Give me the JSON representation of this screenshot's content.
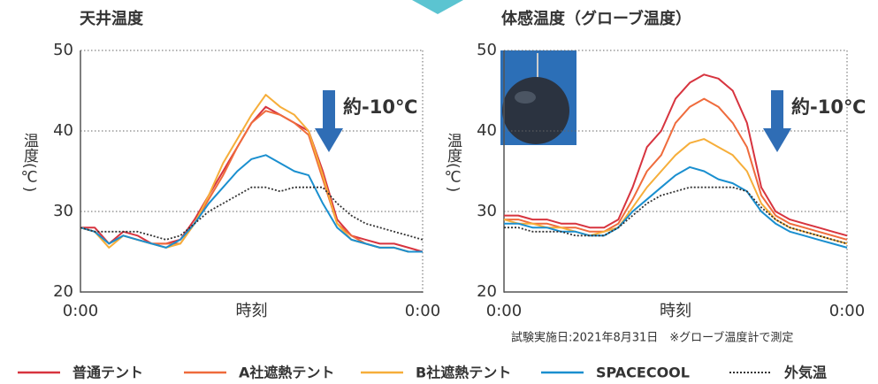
{
  "chart_data": [
    {
      "type": "line",
      "title": "天井温度",
      "x_label": "時刻",
      "y_label": "温度(℃)",
      "annotation": "約-10℃",
      "x": [
        0,
        1,
        2,
        3,
        4,
        5,
        6,
        7,
        8,
        9,
        10,
        11,
        12,
        13,
        14,
        15,
        16,
        17,
        18,
        19,
        20,
        21,
        22,
        23,
        24
      ],
      "xlim": [
        0,
        24
      ],
      "xticks": [
        {
          "value": 0,
          "label": "0:00"
        },
        {
          "value": 24,
          "label": "0:00"
        }
      ],
      "ylim": [
        20,
        50
      ],
      "yticks": [
        20,
        30,
        40,
        50
      ],
      "grid": true,
      "series": [
        {
          "name": "普通テント",
          "color": "#d7343f",
          "dash": "solid",
          "values": [
            28,
            28,
            26,
            27.5,
            27,
            26,
            26,
            26.5,
            29,
            32,
            35,
            38,
            41,
            43,
            42,
            41,
            40,
            35,
            29,
            27,
            26.5,
            26,
            26,
            25.5,
            25
          ]
        },
        {
          "name": "A社遮熱テント",
          "color": "#ef6b3c",
          "dash": "solid",
          "values": [
            28,
            27.5,
            26,
            27,
            26.5,
            26,
            26,
            26,
            28.5,
            31.5,
            34.5,
            38,
            41,
            42.5,
            42,
            41,
            39.5,
            34,
            28.5,
            27,
            26,
            25.5,
            25.5,
            25,
            25
          ]
        },
        {
          "name": "B社遮熱テント",
          "color": "#f6ae3a",
          "dash": "solid",
          "values": [
            28,
            27.5,
            25.5,
            27,
            26.5,
            26,
            25.5,
            26,
            28.5,
            32,
            36,
            39,
            42,
            44.5,
            43,
            42,
            40,
            34.5,
            28.5,
            26.5,
            26,
            25.5,
            25.5,
            25,
            25
          ]
        },
        {
          "name": "SPACECOOL",
          "color": "#1a8fcf",
          "dash": "solid",
          "values": [
            28,
            27.5,
            26,
            27,
            26.5,
            26,
            25.5,
            26.5,
            28.5,
            31,
            33,
            35,
            36.5,
            37,
            36,
            35,
            34.5,
            31,
            28,
            26.5,
            26,
            25.5,
            25.5,
            25,
            25
          ]
        },
        {
          "name": "外気温",
          "color": "#333333",
          "dash": "dotted",
          "values": [
            28,
            27.5,
            27.5,
            27.5,
            27.5,
            27,
            26.5,
            27,
            28.5,
            30,
            31,
            32,
            33,
            33,
            32.5,
            33,
            33,
            33,
            31,
            29.5,
            28.5,
            28,
            27.5,
            27,
            26.5
          ]
        }
      ]
    },
    {
      "type": "line",
      "title": "体感温度（グローブ温度）",
      "x_label": "時刻",
      "y_label": "温度(℃)",
      "annotation": "約-10℃",
      "x": [
        0,
        1,
        2,
        3,
        4,
        5,
        6,
        7,
        8,
        9,
        10,
        11,
        12,
        13,
        14,
        15,
        16,
        17,
        18,
        19,
        20,
        21,
        22,
        23,
        24
      ],
      "xlim": [
        0,
        24
      ],
      "xticks": [
        {
          "value": 0,
          "label": "0:00"
        },
        {
          "value": 24,
          "label": "0:00"
        }
      ],
      "ylim": [
        20,
        50
      ],
      "yticks": [
        20,
        30,
        40,
        50
      ],
      "grid": true,
      "series": [
        {
          "color": "#d7343f",
          "dash": "solid",
          "values": [
            29.5,
            29.5,
            29,
            29,
            28.5,
            28.5,
            28,
            28,
            29,
            33,
            38,
            40,
            44,
            46,
            47,
            46.5,
            45,
            41,
            33,
            30,
            29,
            28.5,
            28,
            27.5,
            27
          ]
        },
        {
          "color": "#ef6b3c",
          "dash": "solid",
          "values": [
            29,
            29,
            28.5,
            28.5,
            28,
            28,
            27.5,
            27.5,
            28.5,
            31.5,
            35,
            37,
            41,
            43,
            44,
            43,
            41,
            38,
            32,
            29.5,
            28.5,
            28,
            27.5,
            27,
            26.5
          ]
        },
        {
          "color": "#f6ae3a",
          "dash": "solid",
          "values": [
            29,
            28.5,
            28.5,
            28,
            28,
            27.5,
            27,
            27.5,
            28,
            30.5,
            33,
            35,
            37,
            38.5,
            39,
            38,
            37,
            35,
            31,
            29,
            28,
            27.5,
            27,
            26.5,
            26
          ]
        },
        {
          "color": "#1a8fcf",
          "dash": "solid",
          "values": [
            28.5,
            28.5,
            28,
            28,
            27.5,
            27.5,
            27,
            27,
            28,
            30,
            31.5,
            33,
            34.5,
            35.5,
            35,
            34,
            33.5,
            32.5,
            30,
            28.5,
            27.5,
            27,
            26.5,
            26,
            25.5
          ]
        },
        {
          "color": "#333333",
          "dash": "dotted",
          "values": [
            28,
            28,
            27.5,
            27.5,
            27.5,
            27,
            27,
            27,
            28,
            29.5,
            31,
            32,
            32.5,
            33,
            33,
            33,
            33,
            32.5,
            30.5,
            29,
            28,
            27.5,
            27,
            26.5,
            26
          ]
        }
      ]
    }
  ],
  "note": "試験実施日:2021年8月31日　※グローブ温度計で測定"
}
